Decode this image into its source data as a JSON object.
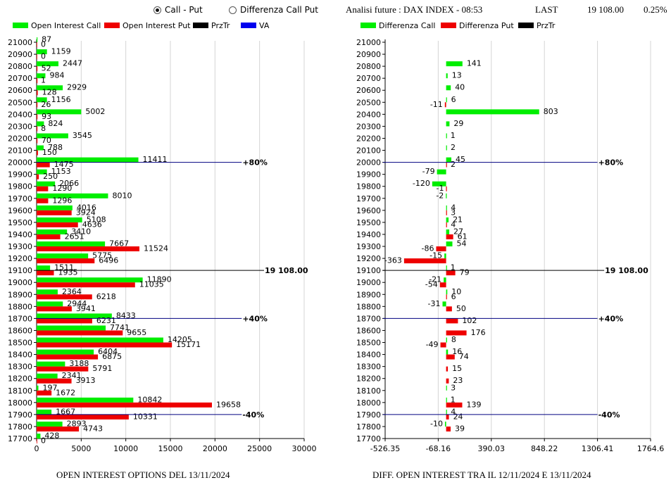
{
  "header": {
    "radio_call_put": "Call - Put",
    "radio_diff": "Differenza Call Put",
    "title": "Analisi future : DAX INDEX - 08:53",
    "last_label": "LAST",
    "last_value": "19 108.00",
    "change": "0.25%"
  },
  "colors": {
    "call": "#00ee00",
    "put": "#ee0000",
    "przt": "#000000",
    "va": "#0000ee"
  },
  "captions": {
    "left": "OPEN INTEREST OPTIONS DEL 13/11/2024",
    "right": "DIFF. OPEN INTEREST TRA IL 12/11/2024 E 13/11/2024"
  },
  "chart_data": [
    {
      "type": "bar",
      "orientation": "horizontal",
      "title": "OPEN INTEREST OPTIONS DEL 13/11/2024",
      "legend": [
        "Open Interest Call",
        "Open Interest Put",
        "PrzTr",
        "VA"
      ],
      "categories": [
        21000,
        20900,
        20800,
        20700,
        20600,
        20500,
        20400,
        20300,
        20200,
        20100,
        20000,
        19900,
        19800,
        19700,
        19600,
        19500,
        19400,
        19300,
        19200,
        19100,
        19000,
        18900,
        18800,
        18700,
        18600,
        18500,
        18400,
        18300,
        18200,
        18100,
        18000,
        17900,
        17800,
        17700
      ],
      "series": [
        {
          "name": "Open Interest Call",
          "values": [
            87,
            1159,
            2447,
            984,
            2929,
            1156,
            5002,
            824,
            3545,
            788,
            11411,
            1153,
            2066,
            8010,
            4016,
            5108,
            3410,
            7667,
            5775,
            1511,
            11890,
            2364,
            2944,
            8433,
            7741,
            14205,
            6404,
            3188,
            2341,
            197,
            10842,
            1667,
            2893,
            428
          ]
        },
        {
          "name": "Open Interest Put",
          "values": [
            0,
            0,
            52,
            1,
            128,
            26,
            93,
            8,
            70,
            150,
            1475,
            250,
            1290,
            1296,
            3924,
            4636,
            2651,
            11524,
            6496,
            1935,
            11035,
            6218,
            3941,
            6231,
            9655,
            15171,
            6875,
            5791,
            3913,
            1672,
            19658,
            10331,
            4743,
            0
          ]
        }
      ],
      "xticks": [
        "0",
        "5000",
        "10000",
        "15000",
        "20000",
        "25000",
        "30000"
      ],
      "xlim": [
        0,
        30000
      ],
      "reference_lines": [
        {
          "strike": 20000,
          "label": "+80%",
          "color": "#000080",
          "end": 23000
        },
        {
          "strike": 19100,
          "label": "19 108.00",
          "color": "#000000",
          "end": 25500
        },
        {
          "strike": 18700,
          "label": "+40%",
          "color": "#000080",
          "end": 23000
        },
        {
          "strike": 17900,
          "label": "-40%",
          "color": "#000080",
          "end": 23000
        }
      ]
    },
    {
      "type": "bar",
      "orientation": "horizontal",
      "title": "DIFF. OPEN INTEREST TRA IL 12/11/2024 E 13/11/2024",
      "legend": [
        "Differenza Call",
        "Differenza Put",
        "PrzTr"
      ],
      "categories": [
        21000,
        20900,
        20800,
        20700,
        20600,
        20500,
        20400,
        20300,
        20200,
        20100,
        20000,
        19900,
        19800,
        19700,
        19600,
        19500,
        19400,
        19300,
        19200,
        19100,
        19000,
        18900,
        18800,
        18700,
        18600,
        18500,
        18400,
        18300,
        18200,
        18100,
        18000,
        17900,
        17800,
        17700
      ],
      "series": [
        {
          "name": "Differenza Call",
          "values": [
            null,
            null,
            141,
            13,
            40,
            6,
            803,
            29,
            1,
            2,
            45,
            -79,
            -120,
            -2,
            4,
            21,
            27,
            54,
            -15,
            1,
            -21,
            10,
            -31,
            null,
            null,
            8,
            16,
            null,
            null,
            3,
            1,
            4,
            -10,
            null
          ]
        },
        {
          "name": "Differenza Put",
          "values": [
            null,
            null,
            null,
            null,
            null,
            -11,
            null,
            null,
            null,
            null,
            2,
            null,
            -1,
            null,
            3,
            4,
            61,
            -86,
            -363,
            79,
            -54,
            6,
            50,
            102,
            176,
            -49,
            74,
            15,
            23,
            null,
            139,
            24,
            39,
            null
          ]
        }
      ],
      "xticks": [
        "-526.35",
        "-68.16",
        "390.03",
        "848.22",
        "1306.41",
        "1764.6"
      ],
      "xlim": [
        -526.35,
        1764.6
      ],
      "reference_lines": [
        {
          "strike": 20000,
          "label": "+80%",
          "color": "#000080",
          "end": 1306.41
        },
        {
          "strike": 19100,
          "label": "19 108.00",
          "color": "#000000",
          "end": 1364.39
        },
        {
          "strike": 18700,
          "label": "+40%",
          "color": "#000080",
          "end": 1306.41
        },
        {
          "strike": 17900,
          "label": "-40%",
          "color": "#000080",
          "end": 1306.41
        }
      ]
    }
  ]
}
